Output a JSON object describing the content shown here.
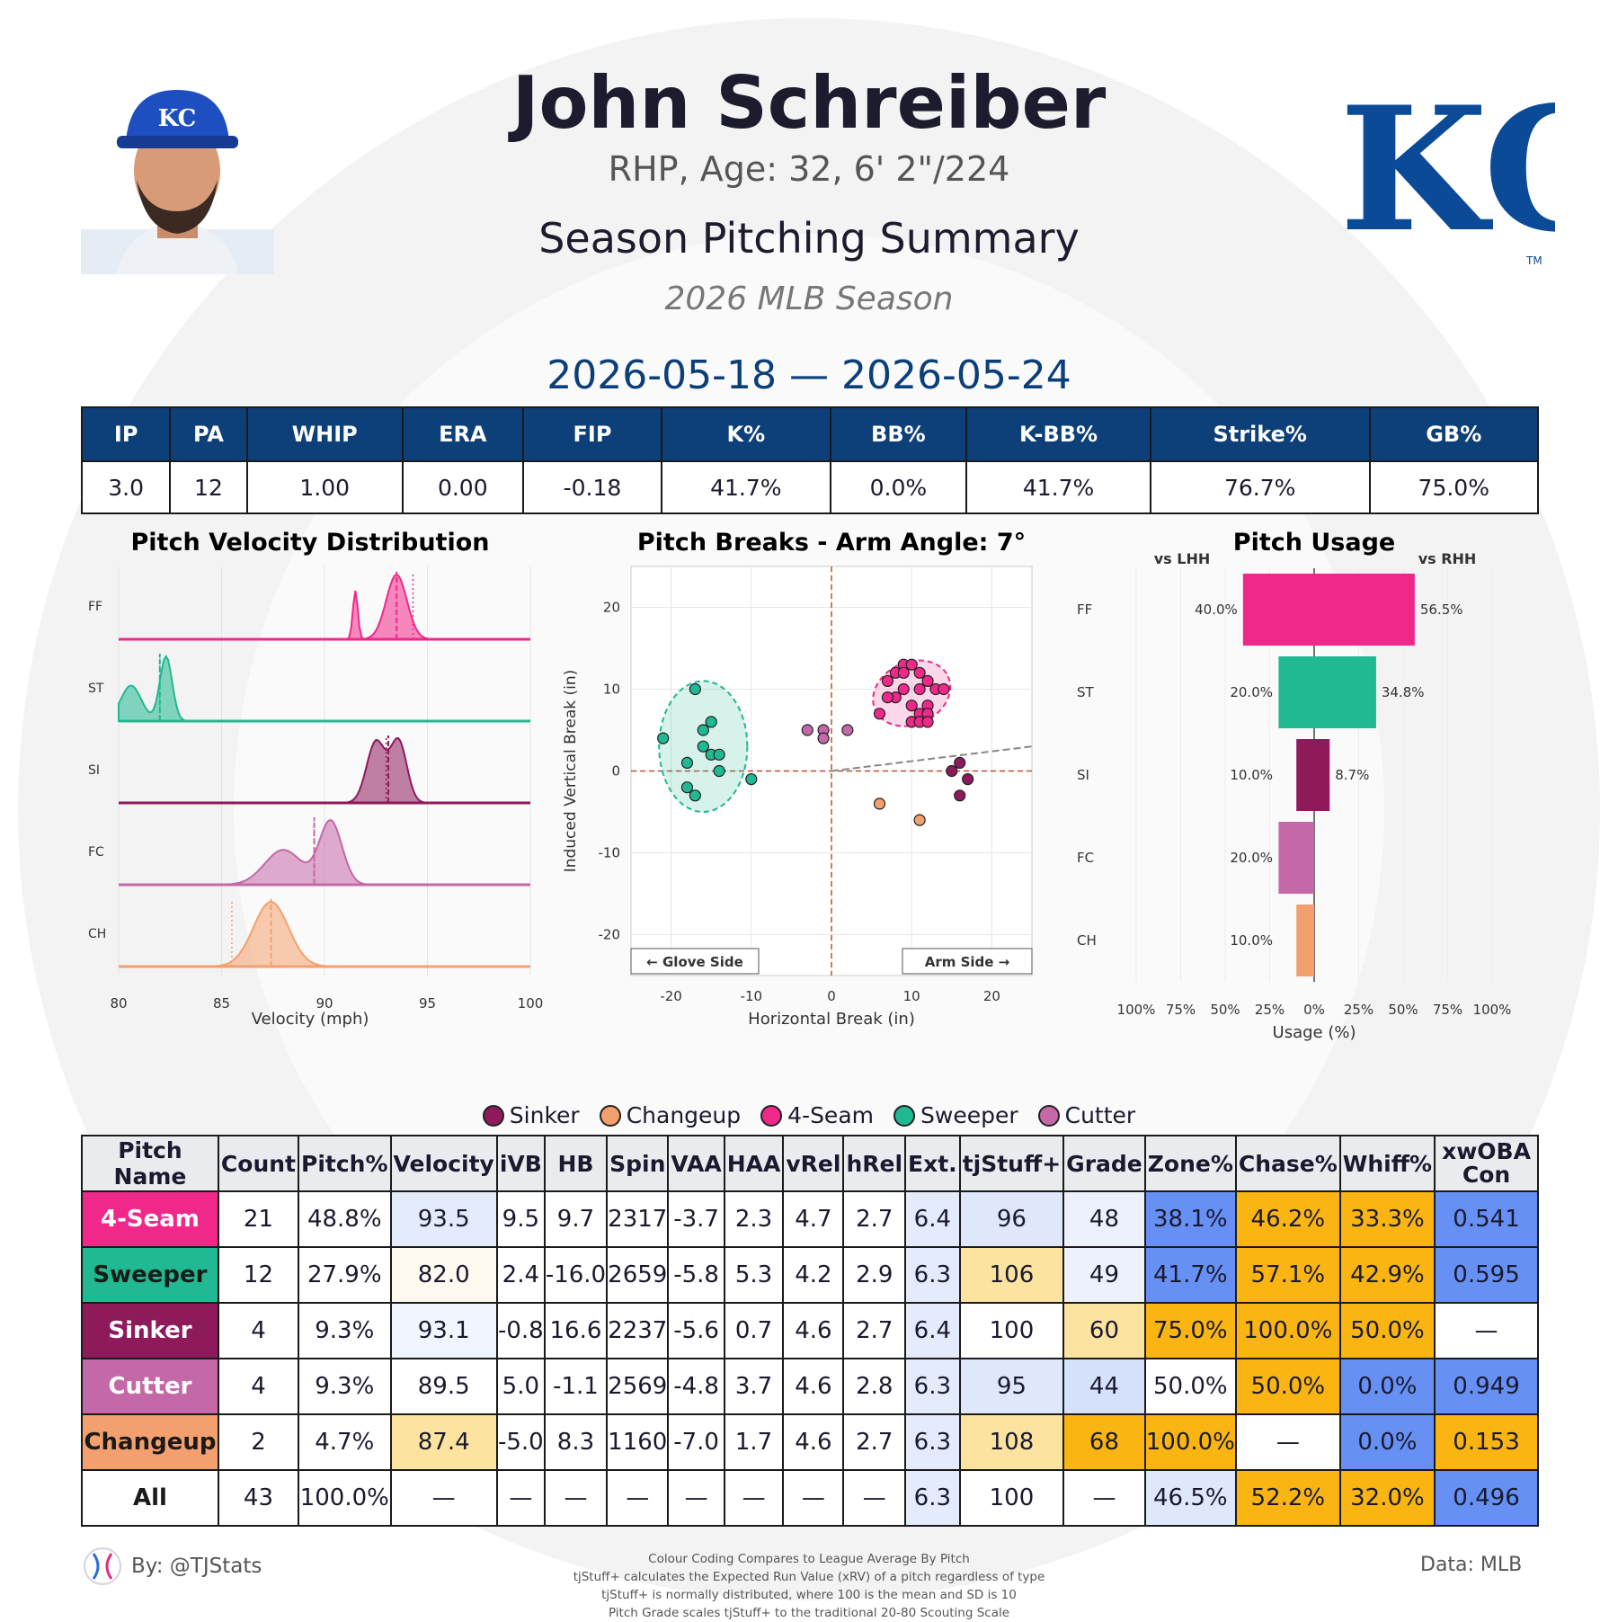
{
  "header": {
    "name": "John Schreiber",
    "info": "RHP, Age: 32, 6' 2\"/224",
    "summary_title": "Season Pitching Summary",
    "season": "2026 MLB Season",
    "date_range": "2026-05-18 — 2026-05-24",
    "team_logo_text": "KC",
    "team_logo_tm": "TM"
  },
  "stats": {
    "headers": [
      "IP",
      "PA",
      "WHIP",
      "ERA",
      "FIP",
      "K%",
      "BB%",
      "K-BB%",
      "Strike%",
      "GB%"
    ],
    "values": [
      "3.0",
      "12",
      "1.00",
      "0.00",
      "-0.18",
      "41.7%",
      "0.0%",
      "41.7%",
      "76.7%",
      "75.0%"
    ]
  },
  "colors": {
    "FF": "#f0288a",
    "ST": "#20b991",
    "SI": "#8e1a5c",
    "FC": "#c468a8",
    "CH": "#f4a06e",
    "header_blue": "#0d3f78",
    "good_blue": "#6690f4",
    "light_blue": "#d6e2fb",
    "pale_blue": "#ecf1fd",
    "orange": "#fbb512",
    "light_orange": "#fde3a0"
  },
  "chart_data": [
    {
      "type": "area",
      "title": "Pitch Velocity Distribution",
      "xlabel": "Velocity (mph)",
      "xlim": [
        80,
        100
      ],
      "xticks": [
        "80",
        "85",
        "90",
        "95",
        "100"
      ],
      "series": [
        {
          "name": "FF",
          "mean": 93.5,
          "league_mean": 94.3
        },
        {
          "name": "ST",
          "mean": 82.0,
          "league_mean": 82.0
        },
        {
          "name": "SI",
          "mean": 93.1,
          "league_mean": 93.0
        },
        {
          "name": "FC",
          "mean": 89.5,
          "league_mean": 89.5
        },
        {
          "name": "CH",
          "mean": 87.4,
          "league_mean": 85.5
        }
      ]
    },
    {
      "type": "scatter",
      "title": "Pitch Breaks - Arm Angle: 7°",
      "xlabel": "Horizontal Break (in)",
      "ylabel": "Induced Vertical Break (in)",
      "xlim": [
        -25,
        25
      ],
      "ylim": [
        -25,
        25
      ],
      "xticks": [
        "-20",
        "-10",
        "0",
        "10",
        "20"
      ],
      "yticks": [
        "20",
        "10",
        "0",
        "-10",
        "-20"
      ],
      "annotations": [
        "← Glove Side",
        "Arm Side →"
      ],
      "series": [
        {
          "name": "FF",
          "points": [
            [
              7,
              11
            ],
            [
              8,
              12
            ],
            [
              9,
              13
            ],
            [
              10,
              13
            ],
            [
              11,
              12
            ],
            [
              12,
              11
            ],
            [
              13,
              10
            ],
            [
              14,
              10
            ],
            [
              11,
              10
            ],
            [
              9,
              10
            ],
            [
              8,
              9
            ],
            [
              12,
              8
            ],
            [
              10,
              8
            ],
            [
              11,
              7
            ],
            [
              12,
              7
            ],
            [
              10,
              6
            ],
            [
              11,
              6
            ],
            [
              12,
              6
            ],
            [
              9,
              12
            ],
            [
              7,
              9
            ],
            [
              6,
              7
            ]
          ]
        },
        {
          "name": "ST",
          "points": [
            [
              -17,
              10
            ],
            [
              -15,
              6
            ],
            [
              -16,
              5
            ],
            [
              -21,
              4
            ],
            [
              -16,
              3
            ],
            [
              -15,
              2
            ],
            [
              -14,
              2
            ],
            [
              -18,
              1
            ],
            [
              -14,
              0
            ],
            [
              -10,
              -1
            ],
            [
              -18,
              -2
            ],
            [
              -17,
              -3
            ]
          ]
        },
        {
          "name": "SI",
          "points": [
            [
              15,
              0
            ],
            [
              16,
              1
            ],
            [
              17,
              -1
            ],
            [
              16,
              -3
            ]
          ]
        },
        {
          "name": "FC",
          "points": [
            [
              -3,
              5
            ],
            [
              -1,
              5
            ],
            [
              -1,
              4
            ],
            [
              2,
              5
            ]
          ]
        },
        {
          "name": "CH",
          "points": [
            [
              6,
              -4
            ],
            [
              11,
              -6
            ]
          ]
        }
      ]
    },
    {
      "type": "bar",
      "title": "Pitch Usage",
      "xlabel": "Usage (%)",
      "left_label": "vs LHH",
      "right_label": "vs RHH",
      "categories": [
        "FF",
        "ST",
        "SI",
        "FC",
        "CH"
      ],
      "xticks": [
        "100%",
        "75%",
        "50%",
        "25%",
        "0%",
        "25%",
        "50%",
        "75%",
        "100%"
      ],
      "series": [
        {
          "name": "vs LHH",
          "values": [
            40.0,
            20.0,
            10.0,
            20.0,
            10.0
          ],
          "labels": [
            "40.0%",
            "20.0%",
            "10.0%",
            "20.0%",
            "10.0%"
          ]
        },
        {
          "name": "vs RHH",
          "values": [
            56.5,
            34.8,
            8.7,
            0,
            0
          ],
          "labels": [
            "56.5%",
            "34.8%",
            "8.7%",
            "",
            ""
          ]
        }
      ]
    }
  ],
  "legend": [
    {
      "name": "Sinker",
      "key": "SI"
    },
    {
      "name": "Changeup",
      "key": "CH"
    },
    {
      "name": "4-Seam",
      "key": "FF"
    },
    {
      "name": "Sweeper",
      "key": "ST"
    },
    {
      "name": "Cutter",
      "key": "FC"
    }
  ],
  "pitch_table": {
    "headers": [
      "Pitch Name",
      "Count",
      "Pitch%",
      "Velocity",
      "iVB",
      "HB",
      "Spin",
      "VAA",
      "HAA",
      "vRel",
      "hRel",
      "Ext.",
      "tjStuff+",
      "Grade",
      "Zone%",
      "Chase%",
      "Whiff%",
      "xwOBA Con"
    ],
    "rows": [
      {
        "name": "4-Seam",
        "key": "FF",
        "text": "#ffffff",
        "cells": [
          "21",
          "48.8%",
          "93.5",
          "9.5",
          "9.7",
          "2317",
          "-3.7",
          "2.3",
          "4.7",
          "2.7",
          "6.4",
          "96",
          "48",
          "38.1%",
          "46.2%",
          "33.3%",
          "0.541"
        ],
        "bg": [
          "#fff",
          "#fff",
          "#e4ebfb",
          "#fff",
          "#fff",
          "#fff",
          "#fff",
          "#fff",
          "#fff",
          "#fff",
          "#e4ebfb",
          "#dfe7fb",
          "#ecf1fd",
          "#6690f4",
          "#fbb512",
          "#fbb512",
          "#6690f4"
        ]
      },
      {
        "name": "Sweeper",
        "key": "ST",
        "text": "#1a1a1a",
        "cells": [
          "12",
          "27.9%",
          "82.0",
          "2.4",
          "-16.0",
          "2659",
          "-5.8",
          "5.3",
          "4.2",
          "2.9",
          "6.3",
          "106",
          "49",
          "41.7%",
          "57.1%",
          "42.9%",
          "0.595"
        ],
        "bg": [
          "#fff",
          "#fff",
          "#fffaf0",
          "#fff",
          "#fff",
          "#fff",
          "#fff",
          "#fff",
          "#fff",
          "#fff",
          "#e4ebfb",
          "#fde3a0",
          "#ecf1fd",
          "#6690f4",
          "#fbb512",
          "#fbb512",
          "#6690f4"
        ]
      },
      {
        "name": "Sinker",
        "key": "SI",
        "text": "#ffffff",
        "cells": [
          "4",
          "9.3%",
          "93.1",
          "-0.8",
          "16.6",
          "2237",
          "-5.6",
          "0.7",
          "4.6",
          "2.7",
          "6.4",
          "100",
          "60",
          "75.0%",
          "100.0%",
          "50.0%",
          "—"
        ],
        "bg": [
          "#fff",
          "#fff",
          "#f1f5fd",
          "#fff",
          "#fff",
          "#fff",
          "#fff",
          "#fff",
          "#fff",
          "#fff",
          "#e4ebfb",
          "#fff",
          "#fde3a0",
          "#fbb512",
          "#fbb512",
          "#fbb512",
          "#fff"
        ]
      },
      {
        "name": "Cutter",
        "key": "FC",
        "text": "#ffffff",
        "cells": [
          "4",
          "9.3%",
          "89.5",
          "5.0",
          "-1.1",
          "2569",
          "-4.8",
          "3.7",
          "4.6",
          "2.8",
          "6.3",
          "95",
          "44",
          "50.0%",
          "50.0%",
          "0.0%",
          "0.949"
        ],
        "bg": [
          "#fff",
          "#fff",
          "#fff",
          "#fff",
          "#fff",
          "#fff",
          "#fff",
          "#fff",
          "#fff",
          "#fff",
          "#e4ebfb",
          "#dfe7fb",
          "#d6e2fb",
          "#fff",
          "#fbb512",
          "#6690f4",
          "#6690f4"
        ]
      },
      {
        "name": "Changeup",
        "key": "CH",
        "text": "#1a1a1a",
        "cells": [
          "2",
          "4.7%",
          "87.4",
          "-5.0",
          "8.3",
          "1160",
          "-7.0",
          "1.7",
          "4.6",
          "2.7",
          "6.3",
          "108",
          "68",
          "100.0%",
          "—",
          "0.0%",
          "0.153"
        ],
        "bg": [
          "#fff",
          "#fff",
          "#fde3a0",
          "#fff",
          "#fff",
          "#fff",
          "#fff",
          "#fff",
          "#fff",
          "#fff",
          "#e4ebfb",
          "#fde3a0",
          "#fbb512",
          "#fbb512",
          "#fff",
          "#6690f4",
          "#fbb512"
        ]
      },
      {
        "name": "All",
        "key": "ALL",
        "text": "#1a1a1a",
        "cells": [
          "43",
          "100.0%",
          "—",
          "—",
          "—",
          "—",
          "—",
          "—",
          "—",
          "—",
          "6.3",
          "100",
          "—",
          "46.5%",
          "52.2%",
          "32.0%",
          "0.496"
        ],
        "bg": [
          "#fff",
          "#fff",
          "#fff",
          "#fff",
          "#fff",
          "#fff",
          "#fff",
          "#fff",
          "#fff",
          "#fff",
          "#e4ebfb",
          "#fff",
          "#fff",
          "#dfe7fb",
          "#fbb512",
          "#fbb512",
          "#6690f4"
        ]
      }
    ]
  },
  "footer": {
    "by": "By: @TJStats",
    "data": "Data: MLB",
    "notes": [
      "Colour Coding Compares to League Average By Pitch",
      "tjStuff+ calculates the Expected Run Value (xRV) of a pitch regardless of type",
      "tjStuff+ is normally distributed, where 100 is the mean and SD is 10",
      "Pitch Grade scales tjStuff+ to the traditional 20-80 Scouting Scale"
    ]
  }
}
